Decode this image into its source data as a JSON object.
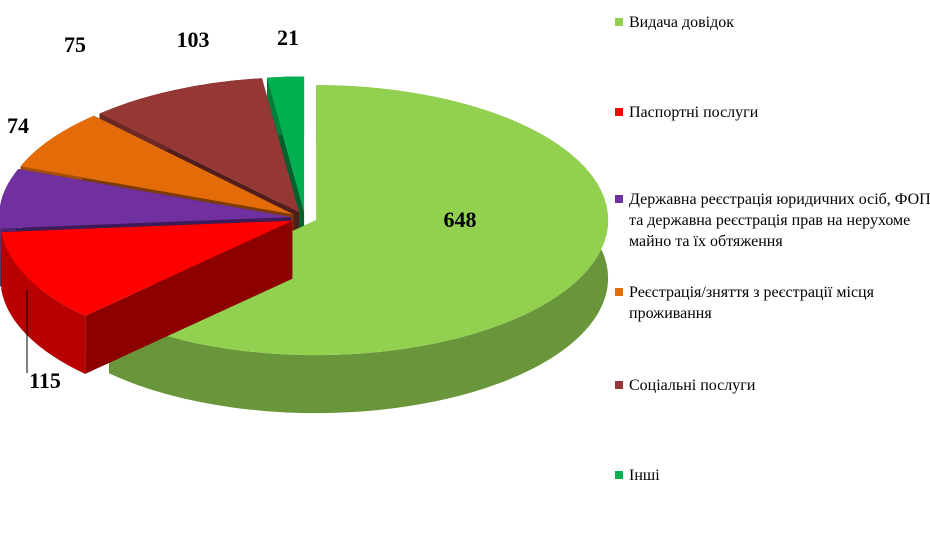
{
  "chart_data": {
    "type": "pie",
    "categories": [
      "Видача довідок",
      "Паспортні послуги",
      "Державна реєстрація юридичних осіб, ФОП та державна реєстрація прав на нерухоме майно та їх обтяження",
      "Реєстрація/зняття з реєстрації місця проживання",
      "Соціальні послуги",
      "Інші"
    ],
    "values": [
      648,
      115,
      74,
      75,
      103,
      21
    ],
    "colors": [
      "#92d050",
      "#ff0000",
      "#7030a0",
      "#e36c09",
      "#953735",
      "#00b050"
    ],
    "legend": "right",
    "style": "3d-exploded"
  }
}
